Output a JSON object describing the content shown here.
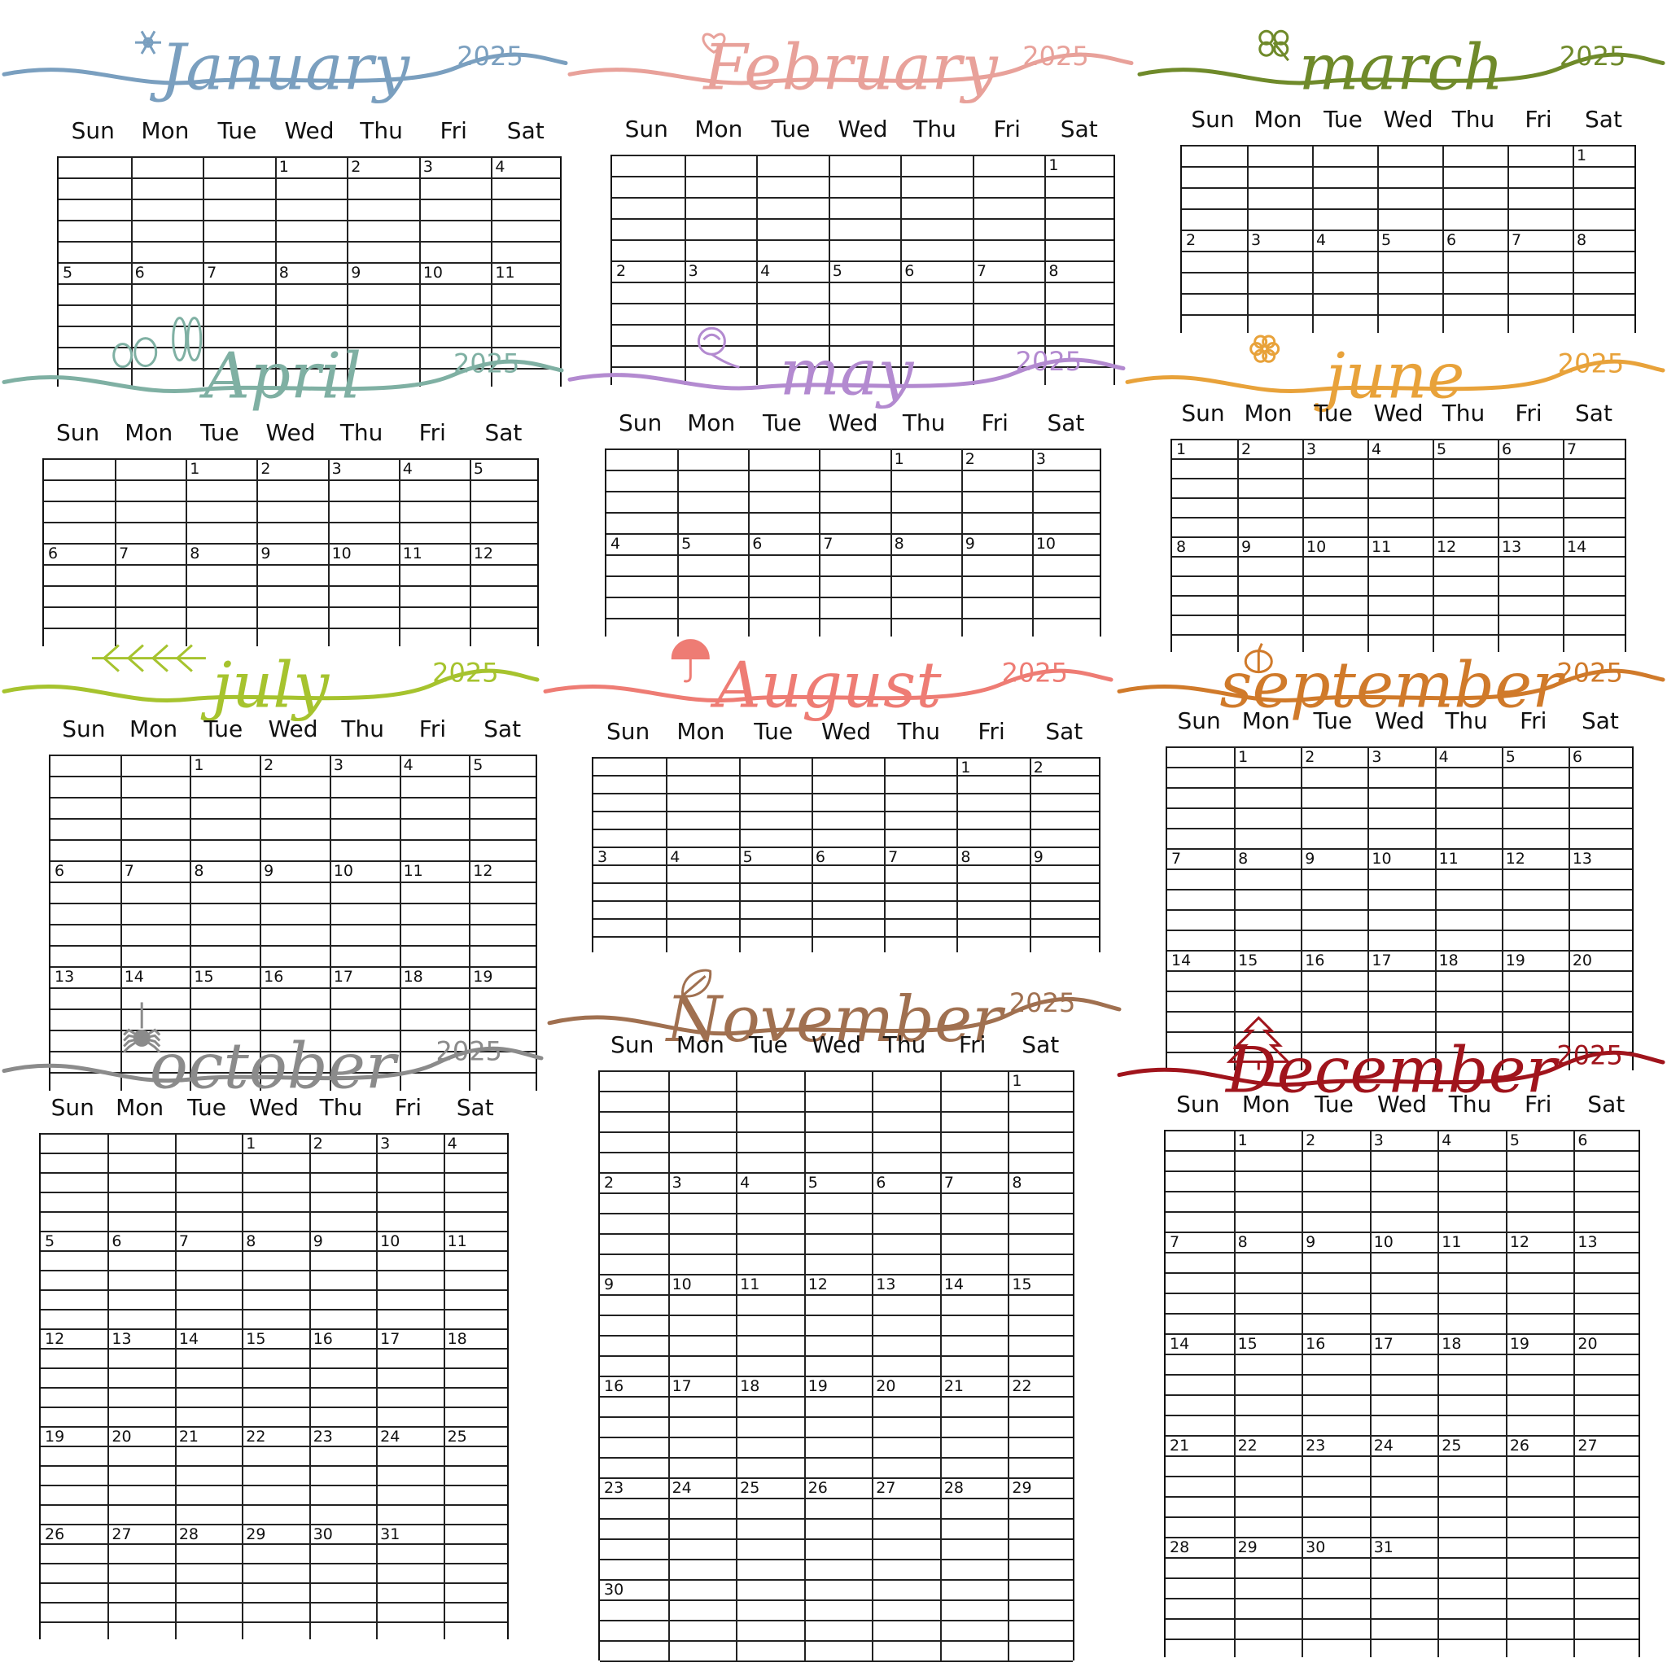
{
  "calendar": {
    "year": "2025",
    "weekdays": [
      "Sun",
      "Mon",
      "Tue",
      "Wed",
      "Thu",
      "Fri",
      "Sat"
    ],
    "months": [
      {
        "name": "January",
        "color": "#7a9fbf",
        "first_weekday": 3,
        "visible_days": 11,
        "icon": "snowflake-icon"
      },
      {
        "name": "February",
        "color": "#e8a19a",
        "first_weekday": 6,
        "visible_days": 8,
        "icon": "heart-icon"
      },
      {
        "name": "march",
        "color": "#6f8a2a",
        "first_weekday": 6,
        "visible_days": 8,
        "icon": "clover-icon"
      },
      {
        "name": "April",
        "color": "#7fb0a3",
        "first_weekday": 2,
        "visible_days": 12,
        "icon": "easter-eggs-icon"
      },
      {
        "name": "may",
        "color": "#b38ad0",
        "first_weekday": 4,
        "visible_days": 10,
        "icon": "carnation-icon"
      },
      {
        "name": "june",
        "color": "#e8a23a",
        "first_weekday": 0,
        "visible_days": 14,
        "icon": "flower-icon"
      },
      {
        "name": "july",
        "color": "#a6c32e",
        "first_weekday": 2,
        "visible_days": 19,
        "icon": "leaf-branch-icon"
      },
      {
        "name": "August",
        "color": "#ee7c74",
        "first_weekday": 5,
        "visible_days": 9,
        "icon": "umbrella-icon"
      },
      {
        "name": "september",
        "color": "#d07a2a",
        "first_weekday": 1,
        "visible_days": 20,
        "icon": "pumpkin-icon"
      },
      {
        "name": "october",
        "color": "#8b8b8b",
        "first_weekday": 3,
        "visible_days": 31,
        "icon": "spider-icon"
      },
      {
        "name": "November",
        "color": "#a07050",
        "first_weekday": 6,
        "visible_days": 30,
        "icon": "autumn-leaf-icon"
      },
      {
        "name": "December",
        "color": "#a0141c",
        "first_weekday": 1,
        "visible_days": 31,
        "icon": "christmas-tree-icon"
      }
    ]
  }
}
